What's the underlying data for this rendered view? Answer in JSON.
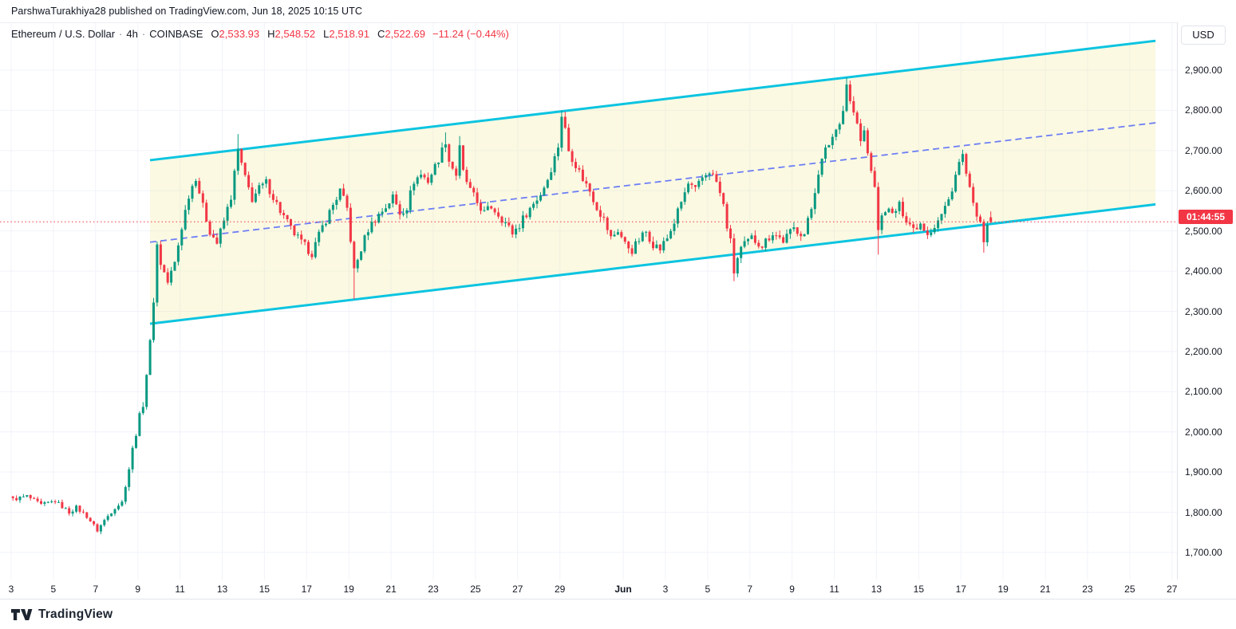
{
  "attribution": {
    "text": "ParshwaTurakhiya28 published on TradingView.com, Jun 18, 2025 10:15 UTC"
  },
  "legend": {
    "symbol_title": "Ethereum / U.S. Dollar",
    "separator": "·",
    "interval": "4h",
    "exchange": "COINBASE",
    "ohlc": {
      "o_label": "O",
      "o_value": "2,533.93",
      "h_label": "H",
      "h_value": "2,548.52",
      "l_label": "L",
      "l_value": "2,518.91",
      "c_label": "C",
      "c_value": "2,522.69",
      "change": "−11.24 (−0.44%)"
    }
  },
  "price_axis": {
    "currency_label": "USD",
    "countdown_badge": "01:44:55",
    "ticks": [
      {
        "label": "2,900.00",
        "value": 2900
      },
      {
        "label": "2,800.00",
        "value": 2800
      },
      {
        "label": "2,700.00",
        "value": 2700
      },
      {
        "label": "2,600.00",
        "value": 2600
      },
      {
        "label": "2,500.00",
        "value": 2500
      },
      {
        "label": "2,400.00",
        "value": 2400
      },
      {
        "label": "2,300.00",
        "value": 2300
      },
      {
        "label": "2,200.00",
        "value": 2200
      },
      {
        "label": "2,100.00",
        "value": 2100
      },
      {
        "label": "2,000.00",
        "value": 2000
      },
      {
        "label": "1,900.00",
        "value": 1900
      },
      {
        "label": "1,800.00",
        "value": 1800
      },
      {
        "label": "1,700.00",
        "value": 1700
      }
    ]
  },
  "time_axis": {
    "ticks": [
      {
        "label": "3",
        "day": 0
      },
      {
        "label": "5",
        "day": 2
      },
      {
        "label": "7",
        "day": 4
      },
      {
        "label": "9",
        "day": 6
      },
      {
        "label": "11",
        "day": 8
      },
      {
        "label": "13",
        "day": 10
      },
      {
        "label": "15",
        "day": 12
      },
      {
        "label": "17",
        "day": 14
      },
      {
        "label": "19",
        "day": 16
      },
      {
        "label": "21",
        "day": 18
      },
      {
        "label": "23",
        "day": 20
      },
      {
        "label": "25",
        "day": 22
      },
      {
        "label": "27",
        "day": 24
      },
      {
        "label": "29",
        "day": 26
      },
      {
        "label": "Jun",
        "day": 29,
        "bold": true
      },
      {
        "label": "3",
        "day": 31
      },
      {
        "label": "5",
        "day": 33
      },
      {
        "label": "7",
        "day": 35
      },
      {
        "label": "9",
        "day": 37
      },
      {
        "label": "11",
        "day": 39
      },
      {
        "label": "13",
        "day": 41
      },
      {
        "label": "15",
        "day": 43
      },
      {
        "label": "17",
        "day": 45
      },
      {
        "label": "19",
        "day": 47
      },
      {
        "label": "21",
        "day": 49
      },
      {
        "label": "23",
        "day": 51
      },
      {
        "label": "25",
        "day": 53
      },
      {
        "label": "27",
        "day": 55
      }
    ]
  },
  "logo": {
    "text": "TradingView"
  },
  "colors": {
    "up": "#089981",
    "down": "#f23645",
    "grid": "#f0f3fa",
    "axis_border": "#e0e3eb",
    "text": "#131722",
    "channel_line": "#0bc4e0",
    "channel_fill": "rgba(242,232,152,0.28)",
    "channel_mid": "#6d7ef5",
    "price_line": "#f23645",
    "badge_bg": "#f23645"
  },
  "chart_data": {
    "type": "candlestick",
    "title": "Ethereum / U.S. Dollar",
    "interval": "4h",
    "exchange": "COINBASE",
    "ylabel": "USD",
    "ylim": [
      1640,
      2985
    ],
    "xlim_days": [
      0,
      55.8
    ],
    "x_start": "May 3, 2025 00:00 UTC",
    "x_end_visible": "Jun 27, 2025",
    "candles_per_day": 6,
    "num_candles": 279,
    "anchor_note": "close_anchors are [candle_index, close_USD] read off the chart; index 0 = May 3 00:00 UTC 4h candle",
    "close_anchors": [
      [
        0,
        1832
      ],
      [
        4,
        1840
      ],
      [
        8,
        1818
      ],
      [
        12,
        1828
      ],
      [
        16,
        1800
      ],
      [
        18,
        1812
      ],
      [
        21,
        1790
      ],
      [
        24,
        1755
      ],
      [
        26,
        1780
      ],
      [
        29,
        1812
      ],
      [
        31,
        1825
      ],
      [
        33,
        1910
      ],
      [
        35,
        2000
      ],
      [
        37,
        2072
      ],
      [
        39,
        2220
      ],
      [
        40,
        2330
      ],
      [
        41,
        2465
      ],
      [
        42,
        2420
      ],
      [
        44,
        2372
      ],
      [
        46,
        2420
      ],
      [
        48,
        2510
      ],
      [
        50,
        2590
      ],
      [
        52,
        2635
      ],
      [
        54,
        2560
      ],
      [
        56,
        2500
      ],
      [
        58,
        2470
      ],
      [
        60,
        2525
      ],
      [
        62,
        2585
      ],
      [
        64,
        2700
      ],
      [
        66,
        2630
      ],
      [
        68,
        2580
      ],
      [
        70,
        2605
      ],
      [
        72,
        2620
      ],
      [
        74,
        2585
      ],
      [
        76,
        2550
      ],
      [
        79,
        2505
      ],
      [
        82,
        2470
      ],
      [
        85,
        2445
      ],
      [
        88,
        2510
      ],
      [
        91,
        2565
      ],
      [
        93,
        2600
      ],
      [
        95,
        2555
      ],
      [
        96,
        2480
      ],
      [
        97,
        2400
      ],
      [
        99,
        2455
      ],
      [
        101,
        2505
      ],
      [
        103,
        2530
      ],
      [
        106,
        2560
      ],
      [
        108,
        2585
      ],
      [
        110,
        2545
      ],
      [
        112,
        2560
      ],
      [
        114,
        2625
      ],
      [
        116,
        2640
      ],
      [
        118,
        2625
      ],
      [
        120,
        2660
      ],
      [
        122,
        2700
      ],
      [
        123,
        2725
      ],
      [
        124,
        2675
      ],
      [
        126,
        2640
      ],
      [
        127,
        2705
      ],
      [
        128,
        2645
      ],
      [
        130,
        2600
      ],
      [
        132,
        2570
      ],
      [
        134,
        2545
      ],
      [
        136,
        2560
      ],
      [
        138,
        2542
      ],
      [
        140,
        2520
      ],
      [
        142,
        2495
      ],
      [
        144,
        2515
      ],
      [
        146,
        2545
      ],
      [
        148,
        2568
      ],
      [
        150,
        2592
      ],
      [
        152,
        2630
      ],
      [
        154,
        2682
      ],
      [
        155,
        2712
      ],
      [
        156,
        2788
      ],
      [
        157,
        2752
      ],
      [
        158,
        2700
      ],
      [
        160,
        2665
      ],
      [
        162,
        2630
      ],
      [
        164,
        2600
      ],
      [
        166,
        2560
      ],
      [
        168,
        2528
      ],
      [
        170,
        2482
      ],
      [
        172,
        2502
      ],
      [
        174,
        2468
      ],
      [
        176,
        2452
      ],
      [
        178,
        2478
      ],
      [
        180,
        2498
      ],
      [
        182,
        2468
      ],
      [
        184,
        2455
      ],
      [
        186,
        2482
      ],
      [
        188,
        2522
      ],
      [
        190,
        2572
      ],
      [
        192,
        2616
      ],
      [
        194,
        2600
      ],
      [
        196,
        2632
      ],
      [
        198,
        2650
      ],
      [
        200,
        2622
      ],
      [
        202,
        2562
      ],
      [
        203,
        2512
      ],
      [
        204,
        2472
      ],
      [
        205,
        2398
      ],
      [
        206,
        2432
      ],
      [
        207,
        2456
      ],
      [
        210,
        2482
      ],
      [
        213,
        2465
      ],
      [
        216,
        2496
      ],
      [
        219,
        2476
      ],
      [
        222,
        2506
      ],
      [
        225,
        2492
      ],
      [
        227,
        2556
      ],
      [
        229,
        2648
      ],
      [
        231,
        2700
      ],
      [
        234,
        2752
      ],
      [
        236,
        2800
      ],
      [
        237,
        2868
      ],
      [
        238,
        2820
      ],
      [
        239,
        2795
      ],
      [
        240,
        2762
      ],
      [
        241,
        2722
      ],
      [
        242,
        2748
      ],
      [
        243,
        2692
      ],
      [
        244,
        2656
      ],
      [
        245,
        2600
      ],
      [
        246,
        2508
      ],
      [
        247,
        2532
      ],
      [
        248,
        2556
      ],
      [
        250,
        2540
      ],
      [
        252,
        2562
      ],
      [
        254,
        2530
      ],
      [
        256,
        2506
      ],
      [
        258,
        2520
      ],
      [
        260,
        2496
      ],
      [
        262,
        2512
      ],
      [
        264,
        2540
      ],
      [
        266,
        2576
      ],
      [
        268,
        2640
      ],
      [
        269,
        2668
      ],
      [
        270,
        2688
      ],
      [
        271,
        2640
      ],
      [
        272,
        2600
      ],
      [
        273,
        2560
      ],
      [
        274,
        2546
      ],
      [
        275,
        2512
      ],
      [
        276,
        2470
      ],
      [
        277,
        2506
      ],
      [
        278,
        2522.69
      ]
    ],
    "wick_overrides": [
      {
        "i": 64,
        "high": 2741
      },
      {
        "i": 97,
        "low": 2330
      },
      {
        "i": 123,
        "high": 2745
      },
      {
        "i": 127,
        "high": 2736
      },
      {
        "i": 156,
        "high": 2800
      },
      {
        "i": 205,
        "low": 2375
      },
      {
        "i": 237,
        "high": 2882
      },
      {
        "i": 246,
        "low": 2441
      },
      {
        "i": 270,
        "high": 2702
      },
      {
        "i": 276,
        "low": 2446
      }
    ],
    "last_candle": {
      "open": 2533.93,
      "high": 2548.52,
      "low": 2518.91,
      "close": 2522.69,
      "change": -11.24,
      "change_pct": -0.44
    },
    "price_line_value": 2522.69,
    "channel": {
      "type": "ascending-parallel-channel",
      "start_day": 6.58,
      "end_day": 54.22,
      "upper_prices": [
        2676,
        2973
      ],
      "lower_prices": [
        2269,
        2566
      ],
      "mid_prices": [
        2472,
        2769
      ],
      "mid_style": "dashed"
    },
    "grid": "on",
    "legend_position": "top-left"
  }
}
